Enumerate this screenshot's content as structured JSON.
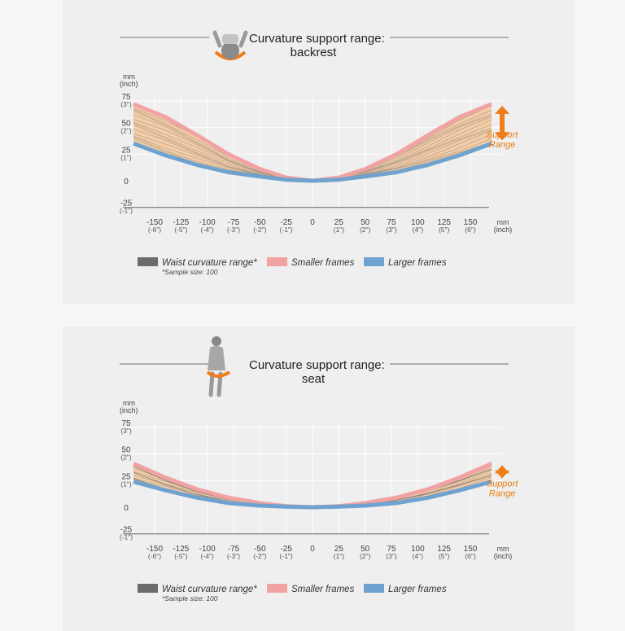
{
  "colors": {
    "waist": "#6b6b6b",
    "smaller": "#f1a3a3",
    "larger": "#6fa2cf",
    "band": "#f4c79a",
    "support": "#ef7d1a",
    "line": "#777777"
  },
  "icons": {
    "backrest": "person-sitting-backrest-icon",
    "seat": "person-sitting-seat-icon",
    "arrow": "double-arrow-icon"
  },
  "chart_data": [
    {
      "type": "area",
      "title": "Curvature support range:",
      "subtitle": "backrest",
      "y_unit": [
        "mm",
        "(inch)"
      ],
      "x_unit": [
        "mm",
        "(inch)"
      ],
      "xlim": [
        -170,
        170
      ],
      "ylim": [
        -25,
        85
      ],
      "x_ticks": [
        {
          "v": -150,
          "s": "(-6\")"
        },
        {
          "v": -125,
          "s": "(-5\")"
        },
        {
          "v": -100,
          "s": "(-4\")"
        },
        {
          "v": -75,
          "s": "(-3\")"
        },
        {
          "v": -50,
          "s": "(-2\")"
        },
        {
          "v": -25,
          "s": "(-1\")"
        },
        {
          "v": 0,
          "s": ""
        },
        {
          "v": 25,
          "s": "(1\")"
        },
        {
          "v": 50,
          "s": "(2\")"
        },
        {
          "v": 75,
          "s": "(3\")"
        },
        {
          "v": 100,
          "s": "(4\")"
        },
        {
          "v": 125,
          "s": "(5\")"
        },
        {
          "v": 150,
          "s": "(6\")"
        }
      ],
      "y_ticks": [
        {
          "v": 75,
          "s": "(3\")"
        },
        {
          "v": 50,
          "s": "(2\")"
        },
        {
          "v": 25,
          "s": "(1\")"
        },
        {
          "v": 0,
          "s": ""
        },
        {
          "v": -25,
          "s": "(-1\")"
        }
      ],
      "series": [
        {
          "name": "Smaller frames",
          "x": [
            -170,
            -140,
            -110,
            -80,
            -50,
            -25,
            0,
            25,
            50,
            80,
            110,
            140,
            170
          ],
          "y": [
            72,
            60,
            43,
            25,
            11,
            3,
            0,
            3,
            11,
            25,
            43,
            60,
            72
          ]
        },
        {
          "name": "Larger frames",
          "x": [
            -170,
            -140,
            -110,
            -80,
            -50,
            -25,
            0,
            25,
            50,
            80,
            110,
            140,
            170
          ],
          "y": [
            35,
            24,
            15,
            8,
            4,
            1,
            0,
            1,
            4,
            8,
            15,
            24,
            35
          ]
        }
      ],
      "legend": [
        {
          "label": "Waist curvature range*",
          "color_key": "waist"
        },
        {
          "label": "Smaller frames",
          "color_key": "smaller"
        },
        {
          "label": "Larger frames",
          "color_key": "larger"
        }
      ],
      "note": "*Sample size: 100",
      "support_label": [
        "Support",
        "Range"
      ]
    },
    {
      "type": "area",
      "title": "Curvature support range:",
      "subtitle": "seat",
      "y_unit": [
        "mm",
        "(inch)"
      ],
      "x_unit": [
        "mm",
        "(inch)"
      ],
      "xlim": [
        -170,
        170
      ],
      "ylim": [
        -25,
        85
      ],
      "x_ticks": [
        {
          "v": -150,
          "s": "(-6\")"
        },
        {
          "v": -125,
          "s": "(-5\")"
        },
        {
          "v": -100,
          "s": "(-4\")"
        },
        {
          "v": -75,
          "s": "(-3\")"
        },
        {
          "v": -50,
          "s": "(-2\")"
        },
        {
          "v": -25,
          "s": "(-1\")"
        },
        {
          "v": 0,
          "s": ""
        },
        {
          "v": 25,
          "s": "(1\")"
        },
        {
          "v": 50,
          "s": "(2\")"
        },
        {
          "v": 75,
          "s": "(3\")"
        },
        {
          "v": 100,
          "s": "(4\")"
        },
        {
          "v": 125,
          "s": "(5\")"
        },
        {
          "v": 150,
          "s": "(6\")"
        }
      ],
      "y_ticks": [
        {
          "v": 75,
          "s": "(3\")"
        },
        {
          "v": 50,
          "s": "(2\")"
        },
        {
          "v": 25,
          "s": "(1\")"
        },
        {
          "v": 0,
          "s": ""
        },
        {
          "v": -25,
          "s": "(-1\")"
        }
      ],
      "series": [
        {
          "name": "Smaller frames",
          "x": [
            -170,
            -140,
            -110,
            -80,
            -50,
            -25,
            0,
            25,
            50,
            80,
            110,
            140,
            170
          ],
          "y": [
            41,
            28,
            17,
            9,
            4,
            1,
            0,
            1,
            4,
            9,
            17,
            28,
            41
          ]
        },
        {
          "name": "Larger frames",
          "x": [
            -170,
            -140,
            -110,
            -80,
            -50,
            -25,
            0,
            25,
            50,
            80,
            110,
            140,
            170
          ],
          "y": [
            24,
            16,
            9,
            4,
            1.5,
            0.5,
            0,
            0.5,
            1.5,
            4,
            9,
            16,
            24
          ]
        }
      ],
      "legend": [
        {
          "label": "Waist curvature range*",
          "color_key": "waist"
        },
        {
          "label": "Smaller frames",
          "color_key": "smaller"
        },
        {
          "label": "Larger frames",
          "color_key": "larger"
        }
      ],
      "note": "*Sample size: 100",
      "support_label": [
        "Support",
        "Range"
      ]
    }
  ]
}
